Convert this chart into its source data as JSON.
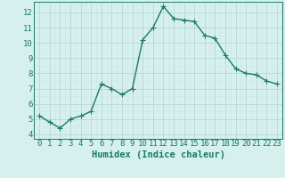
{
  "x": [
    0,
    1,
    2,
    3,
    4,
    5,
    6,
    7,
    8,
    9,
    10,
    11,
    12,
    13,
    14,
    15,
    16,
    17,
    18,
    19,
    20,
    21,
    22,
    23
  ],
  "y": [
    5.2,
    4.8,
    4.4,
    5.0,
    5.2,
    5.5,
    7.3,
    7.0,
    6.6,
    7.0,
    10.2,
    11.0,
    12.4,
    11.6,
    11.5,
    11.4,
    10.5,
    10.3,
    9.2,
    8.3,
    8.0,
    7.9,
    7.5,
    7.3
  ],
  "xlabel": "Humidex (Indice chaleur)",
  "line_color": "#1a7a6e",
  "marker_color": "#1a7a6e",
  "bg_color": "#d6f0ed",
  "grid_major_color": "#b8d8d4",
  "grid_minor_color": "#cce8e4",
  "ylim": [
    3.7,
    12.7
  ],
  "xlim": [
    -0.5,
    23.5
  ],
  "yticks": [
    4,
    5,
    6,
    7,
    8,
    9,
    10,
    11,
    12
  ],
  "xticks": [
    0,
    1,
    2,
    3,
    4,
    5,
    6,
    7,
    8,
    9,
    10,
    11,
    12,
    13,
    14,
    15,
    16,
    17,
    18,
    19,
    20,
    21,
    22,
    23
  ],
  "xlabel_fontsize": 7.5,
  "tick_fontsize": 6.5,
  "line_width": 1.0,
  "marker_size": 4
}
